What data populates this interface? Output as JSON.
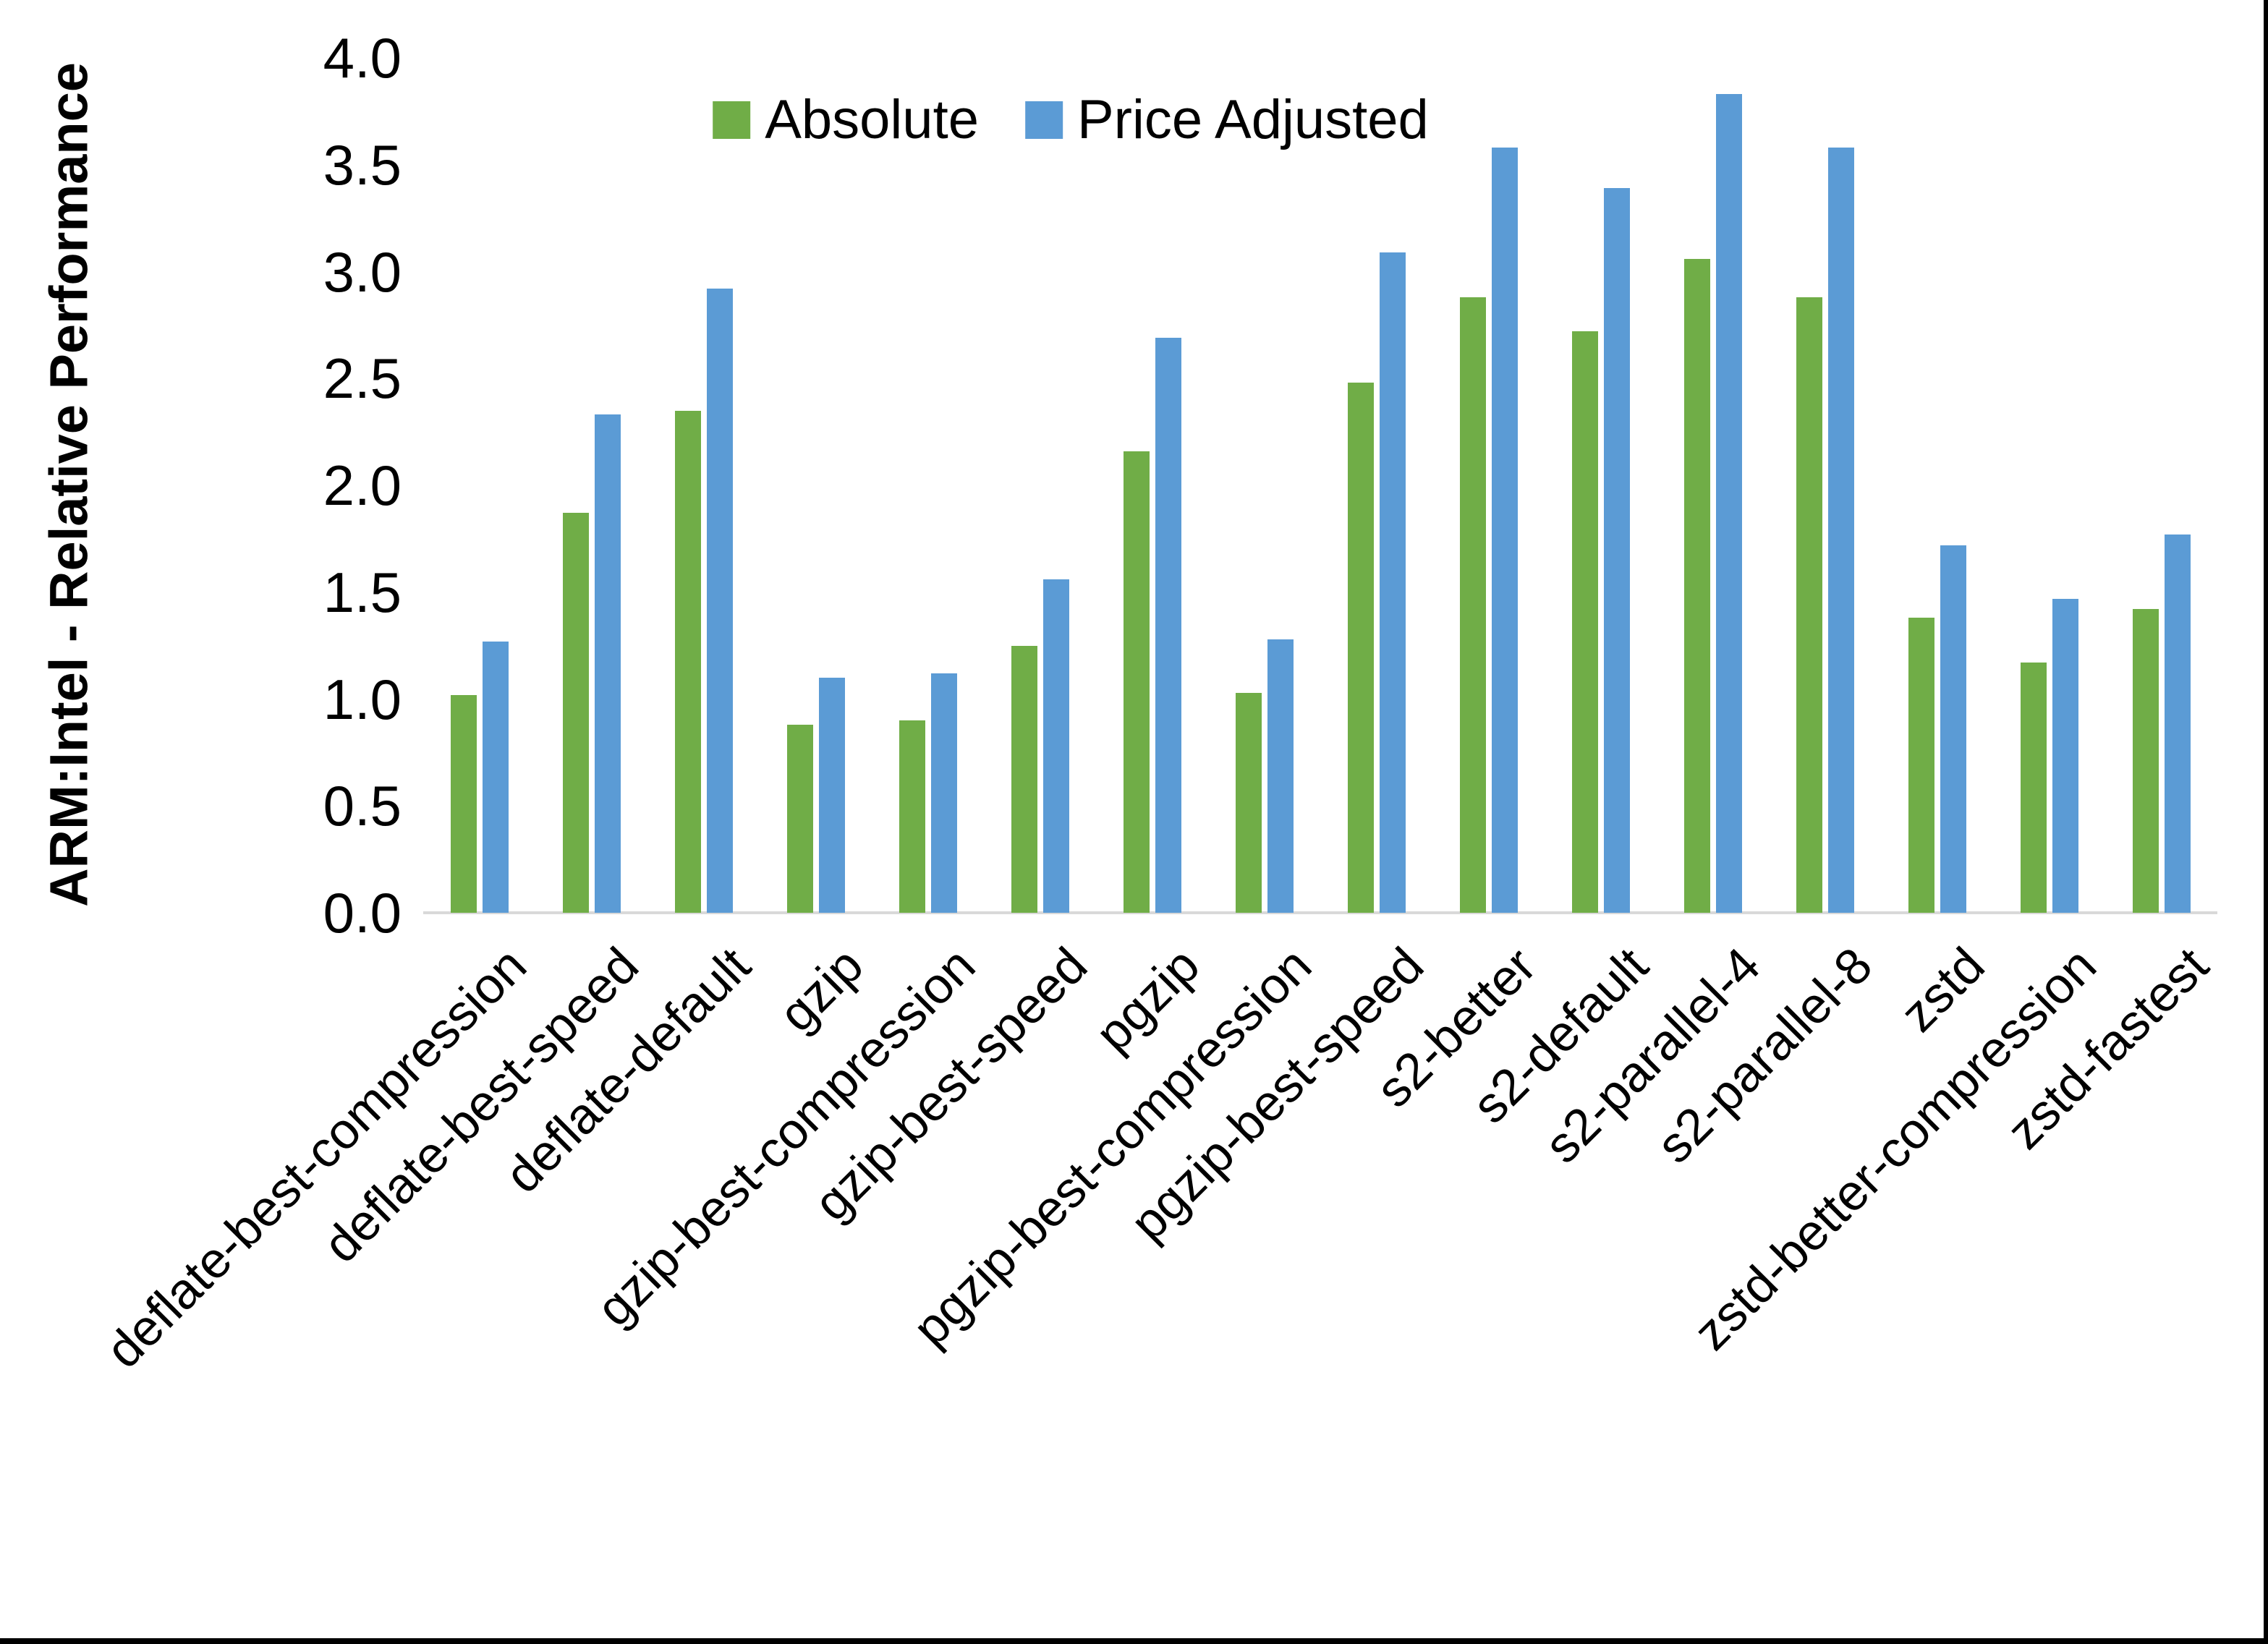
{
  "chart_data": {
    "type": "bar",
    "title": "",
    "xlabel": "",
    "ylabel": "ARM:Intel - Relative Performance",
    "ylim": [
      0.0,
      4.0
    ],
    "ytick_step": 0.5,
    "ytick_labels": [
      "0.0",
      "0.5",
      "1.0",
      "1.5",
      "2.0",
      "2.5",
      "3.0",
      "3.5",
      "4.0"
    ],
    "grid": false,
    "legend_position": "top-center",
    "axis_line_color": "#d9d9d9",
    "categories": [
      "deflate-best-compression",
      "deflate-best-speed",
      "deflate-default",
      "gzip",
      "gzip-best-compression",
      "gzip-best-speed",
      "pgzip",
      "pgzip-best-compression",
      "pgzip-best-speed",
      "s2-better",
      "s2-default",
      "s2-parallel-4",
      "s2-parallel-8",
      "zstd",
      "zstd-better-compression",
      "zstd-fastest"
    ],
    "series": [
      {
        "name": "Absolute",
        "color": "#70AD47",
        "values": [
          1.02,
          1.87,
          2.35,
          0.88,
          0.9,
          1.25,
          2.16,
          1.03,
          2.48,
          2.88,
          2.72,
          3.06,
          2.88,
          1.38,
          1.17,
          1.42
        ]
      },
      {
        "name": "Price Adjusted",
        "color": "#5B9BD5",
        "values": [
          1.27,
          2.33,
          2.92,
          1.1,
          1.12,
          1.56,
          2.69,
          1.28,
          3.09,
          3.58,
          3.39,
          3.83,
          3.58,
          1.72,
          1.47,
          1.77
        ]
      }
    ]
  }
}
